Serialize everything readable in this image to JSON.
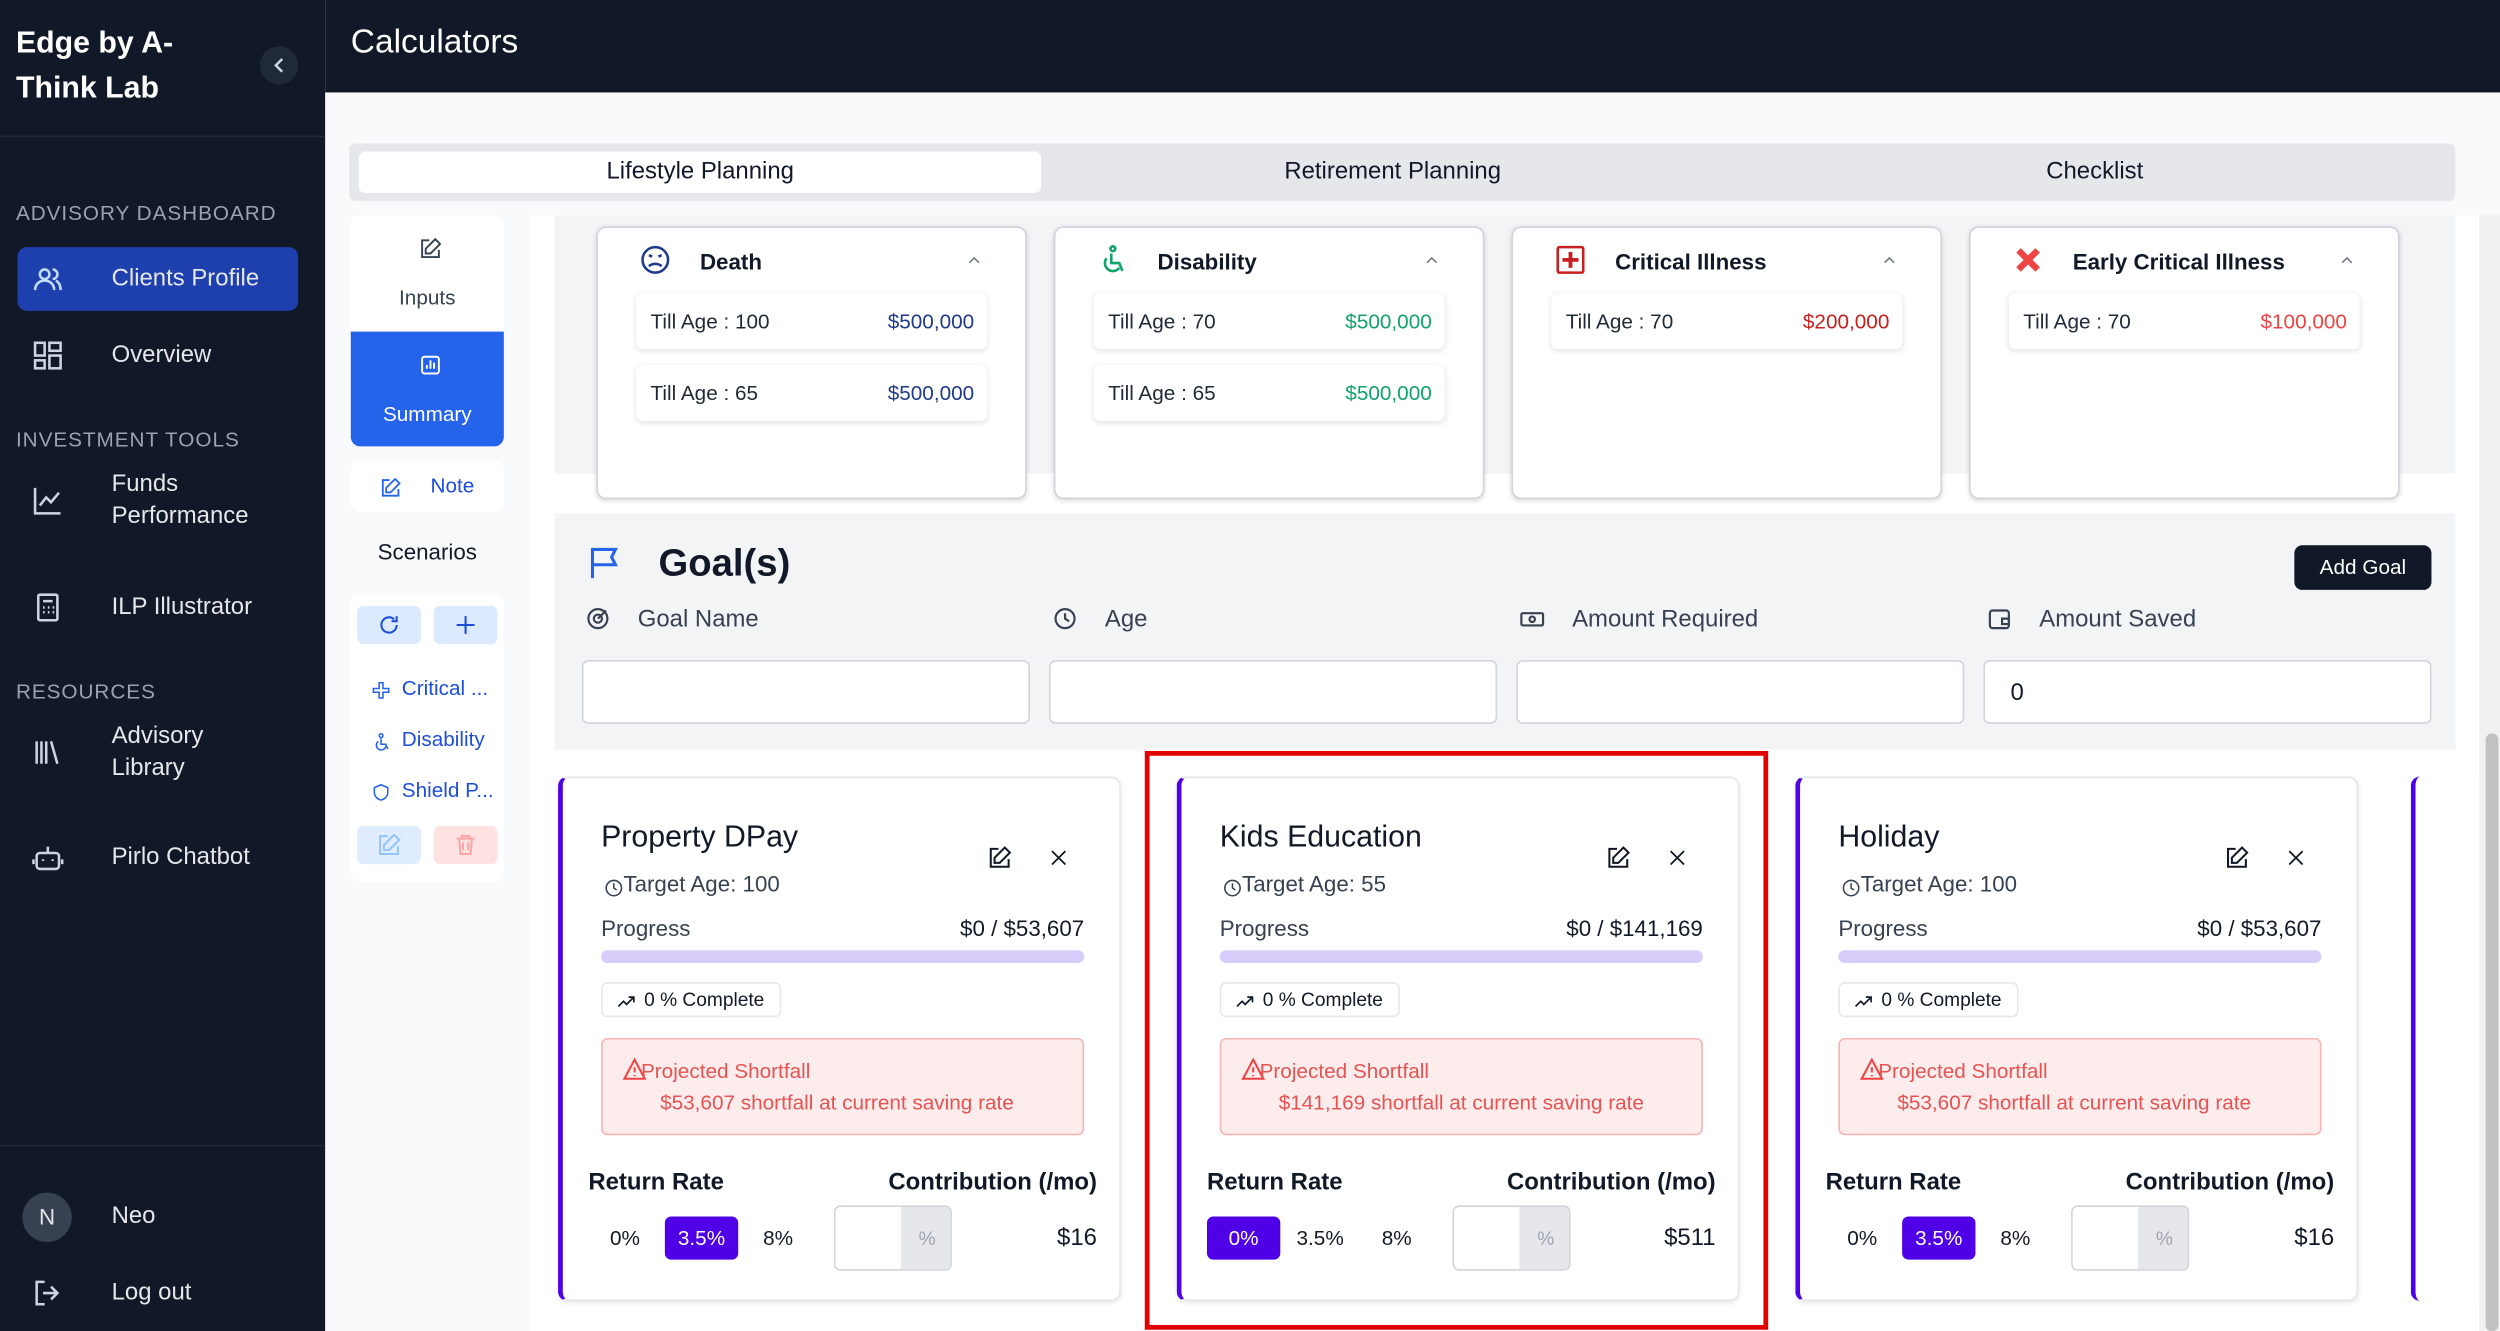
{
  "sidebar": {
    "brand": "Edge by A-Think Lab",
    "sections": [
      {
        "title": "ADVISORY DASHBOARD",
        "items": [
          "Clients Profile",
          "Overview"
        ]
      },
      {
        "title": "INVESTMENT TOOLS",
        "items": [
          "Funds Performance",
          "ILP Illustrator"
        ]
      },
      {
        "title": "RESOURCES",
        "items": [
          "Advisory Library",
          "Pirlo Chatbot"
        ]
      }
    ],
    "user": {
      "initial": "N",
      "name": "Neo"
    },
    "logout": "Log out"
  },
  "header": {
    "title": "Calculators"
  },
  "tabs": [
    "Lifestyle Planning",
    "Retirement Planning",
    "Checklist"
  ],
  "side_menu": {
    "inputs": "Inputs",
    "summary": "Summary",
    "note": "Note",
    "scenarios": "Scenarios",
    "scenario_items": [
      "Critical ...",
      "Disability",
      "Shield P..."
    ]
  },
  "coverage": [
    {
      "title": "Death",
      "color": "#1e3a8a",
      "rows": [
        {
          "label": "Till Age : 100",
          "amount": "$500,000"
        },
        {
          "label": "Till Age : 65",
          "amount": "$500,000"
        }
      ]
    },
    {
      "title": "Disability",
      "color": "#10a36b",
      "rows": [
        {
          "label": "Till Age : 70",
          "amount": "$500,000"
        },
        {
          "label": "Till Age : 65",
          "amount": "$500,000"
        }
      ]
    },
    {
      "title": "Critical Illness",
      "color": "#c81e1e",
      "rows": [
        {
          "label": "Till Age : 70",
          "amount": "$200,000"
        }
      ]
    },
    {
      "title": "Early Critical Illness",
      "color": "#ef4444",
      "rows": [
        {
          "label": "Till Age : 70",
          "amount": "$100,000"
        }
      ]
    }
  ],
  "goals": {
    "title": "Goal(s)",
    "add_button": "Add Goal",
    "fields": [
      "Goal Name",
      "Age",
      "Amount Required",
      "Amount Saved"
    ],
    "amount_saved_value": "0"
  },
  "goal_cards": [
    {
      "name": "Property DPay",
      "target": "Target Age: 100",
      "progress_label": "Progress",
      "progress_value": "$0 / $53,607",
      "complete": "0 % Complete",
      "shortfall_title": "Projected Shortfall",
      "shortfall_text": "$53,607 shortfall at current saving rate",
      "return_rate_label": "Return Rate",
      "contribution_label": "Contribution (/mo)",
      "rates": [
        "0%",
        "3.5%",
        "8%"
      ],
      "selected_rate": 1,
      "unit": "%",
      "contribution": "$16"
    },
    {
      "name": "Kids Education",
      "target": "Target Age: 55",
      "progress_label": "Progress",
      "progress_value": "$0 / $141,169",
      "complete": "0 % Complete",
      "shortfall_title": "Projected Shortfall",
      "shortfall_text": "$141,169 shortfall at current saving rate",
      "return_rate_label": "Return Rate",
      "contribution_label": "Contribution (/mo)",
      "rates": [
        "0%",
        "3.5%",
        "8%"
      ],
      "selected_rate": 0,
      "unit": "%",
      "contribution": "$511"
    },
    {
      "name": "Holiday",
      "target": "Target Age: 100",
      "progress_label": "Progress",
      "progress_value": "$0 / $53,607",
      "complete": "0 % Complete",
      "shortfall_title": "Projected Shortfall",
      "shortfall_text": "$53,607 shortfall at current saving rate",
      "return_rate_label": "Return Rate",
      "contribution_label": "Contribution (/mo)",
      "rates": [
        "0%",
        "3.5%",
        "8%"
      ],
      "selected_rate": 1,
      "unit": "%",
      "contribution": "$16"
    }
  ],
  "highlighted_card": 1
}
